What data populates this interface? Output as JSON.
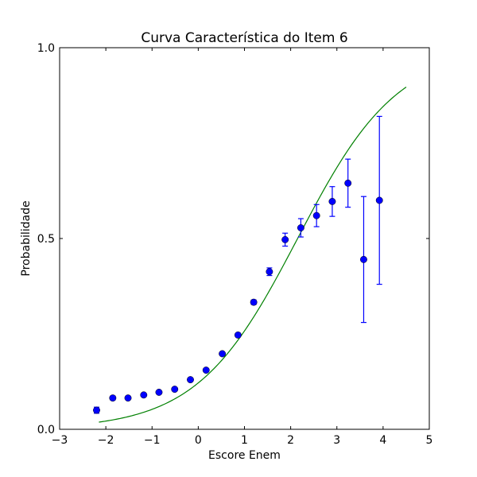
{
  "chart_data": {
    "type": "scatter",
    "title": "Curva Característica do Item 6",
    "xlabel": "Escore Enem",
    "ylabel": "Probabilidade",
    "xlim": [
      -3,
      5
    ],
    "ylim": [
      0,
      1
    ],
    "grid": false,
    "x_ticks": [
      -3,
      -2,
      -1,
      0,
      1,
      2,
      3,
      4,
      5
    ],
    "x_tick_labels": [
      "−3",
      "−2",
      "−1",
      "0",
      "1",
      "2",
      "3",
      "4",
      "5"
    ],
    "y_ticks": [
      0,
      0.5,
      1
    ],
    "y_tick_labels": [
      "0.0",
      "0.5",
      "1.0"
    ],
    "colors": {
      "points": "#0000ff",
      "curve": "#008000"
    },
    "observed": {
      "x": [
        -2.2,
        -1.85,
        -1.52,
        -1.18,
        -0.85,
        -0.51,
        -0.17,
        0.17,
        0.52,
        0.86,
        1.2,
        1.54,
        1.88,
        2.22,
        2.56,
        2.9,
        3.24,
        3.58,
        3.92
      ],
      "y": [
        0.05,
        0.082,
        0.082,
        0.09,
        0.097,
        0.105,
        0.13,
        0.155,
        0.198,
        0.247,
        0.333,
        0.413,
        0.497,
        0.528,
        0.56,
        0.597,
        0.645,
        0.445,
        0.6
      ],
      "err": [
        0.008,
        0.005,
        0.003,
        0.003,
        0.003,
        0.003,
        0.004,
        0.004,
        0.004,
        0.005,
        0.006,
        0.01,
        0.017,
        0.024,
        0.029,
        0.039,
        0.063,
        0.165,
        0.22
      ]
    },
    "fitted_curve": {
      "x_range": [
        -2.15,
        4.5
      ],
      "lower_asymptote": 0,
      "upper_asymptote": 1,
      "midpoint": 2.15,
      "slope": 0.92
    }
  }
}
